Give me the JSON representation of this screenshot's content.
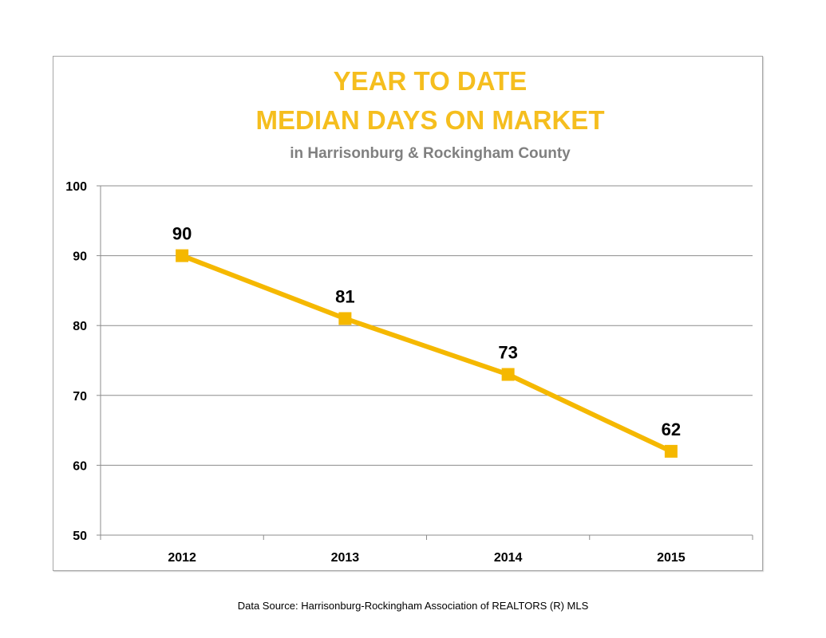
{
  "chart_data": {
    "type": "line",
    "title_line1": "YEAR TO DATE",
    "title_line2": "MEDIAN DAYS ON MARKET",
    "subtitle": "in Harrisonburg  & Rockingham County",
    "categories": [
      "2012",
      "2013",
      "2014",
      "2015"
    ],
    "series": [
      {
        "values": [
          90,
          81,
          73,
          62
        ],
        "color": "#f5b800"
      }
    ],
    "ylim": [
      50,
      100
    ],
    "yticks": [
      50,
      60,
      70,
      80,
      90,
      100
    ],
    "grid": true,
    "data_labels": true,
    "title_color": "#f5be1e",
    "subtitle_color": "#808080"
  },
  "source_note": "Data Source: Harrisonburg-Rockingham Association of REALTORS (R) MLS"
}
